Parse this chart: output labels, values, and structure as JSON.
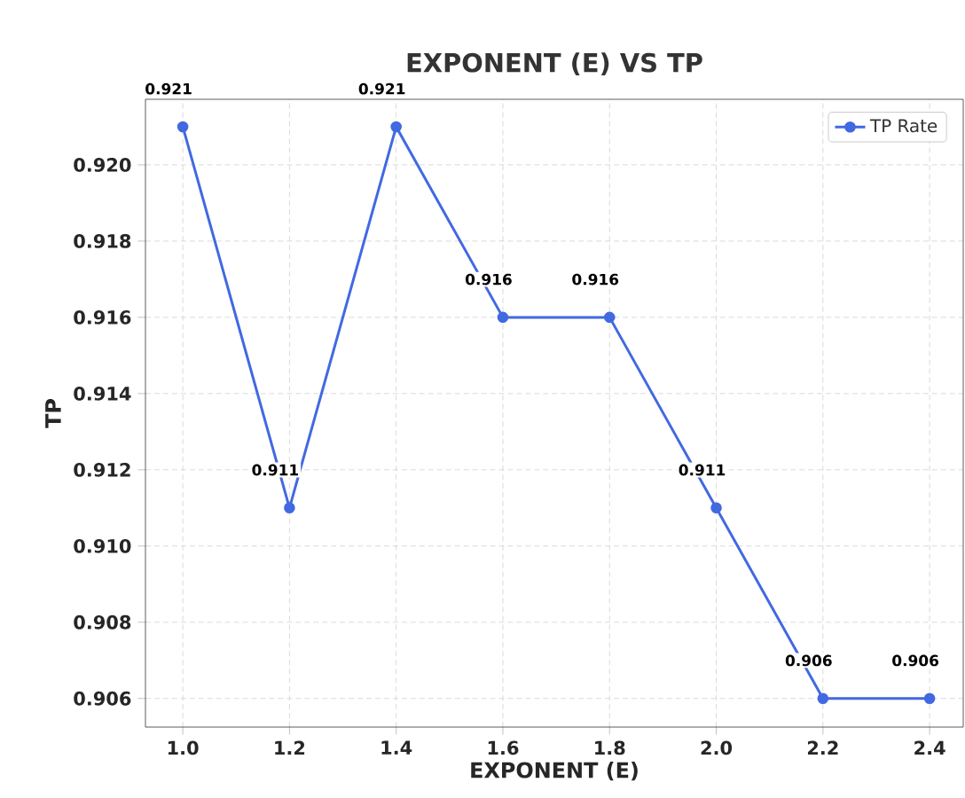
{
  "chart_data": {
    "type": "line",
    "title": "EXPONENT (E) VS TP",
    "xlabel": "EXPONENT (E)",
    "ylabel": "TP",
    "x": [
      1.0,
      1.2,
      1.4,
      1.6,
      1.8,
      2.0,
      2.2,
      2.4
    ],
    "series": [
      {
        "name": "TP Rate",
        "color": "#4169e1",
        "values": [
          0.921,
          0.911,
          0.921,
          0.916,
          0.916,
          0.911,
          0.906,
          0.906
        ]
      }
    ],
    "xlim": [
      0.93,
      2.463
    ],
    "ylim": [
      0.90525,
      0.92172
    ],
    "xticks": [
      {
        "value": 1.0,
        "label": "1.0"
      },
      {
        "value": 1.2,
        "label": "1.2"
      },
      {
        "value": 1.4,
        "label": "1.4"
      },
      {
        "value": 1.6,
        "label": "1.6"
      },
      {
        "value": 1.8,
        "label": "1.8"
      },
      {
        "value": 2.0,
        "label": "2.0"
      },
      {
        "value": 2.2,
        "label": "2.2"
      },
      {
        "value": 2.4,
        "label": "2.4"
      }
    ],
    "yticks": [
      {
        "value": 0.906,
        "label": "0.906"
      },
      {
        "value": 0.908,
        "label": "0.908"
      },
      {
        "value": 0.91,
        "label": "0.910"
      },
      {
        "value": 0.912,
        "label": "0.912"
      },
      {
        "value": 0.914,
        "label": "0.914"
      },
      {
        "value": 0.916,
        "label": "0.916"
      },
      {
        "value": 0.918,
        "label": "0.918"
      },
      {
        "value": 0.92,
        "label": "0.920"
      }
    ],
    "grid": true,
    "legend": "top right",
    "marker": "circle",
    "line_style": "solid",
    "data_labels": true
  }
}
